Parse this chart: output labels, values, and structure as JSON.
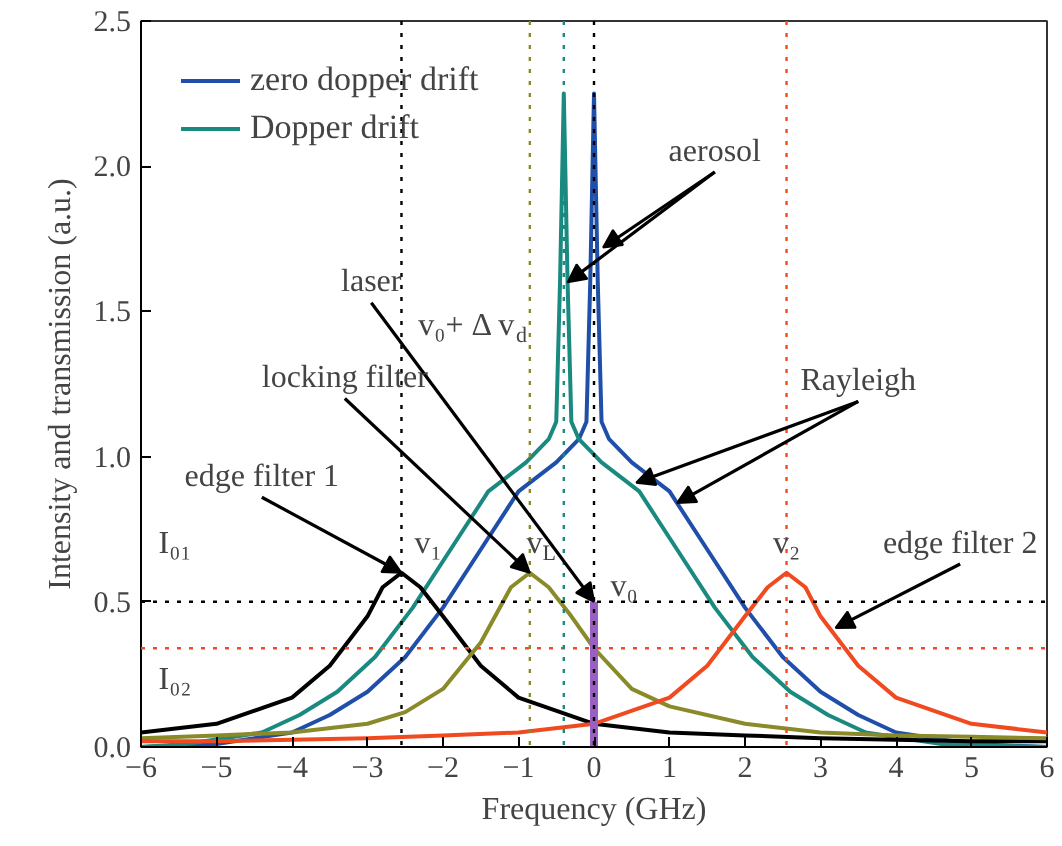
{
  "chart_data": {
    "type": "line",
    "xlabel": "Frequency (GHz)",
    "ylabel": "Intensity and transmission (a.u.)",
    "xlim": [
      -6,
      6
    ],
    "xticks": [
      -6,
      -5,
      -4,
      -3,
      -2,
      -1,
      0,
      1,
      2,
      3,
      4,
      5,
      6
    ],
    "ylim": [
      0,
      2.5
    ],
    "yticks": [
      {
        "value": 0,
        "label": "0.0"
      },
      {
        "value": 0.5,
        "label": "0.5"
      },
      {
        "value": 1,
        "label": "1.0"
      },
      {
        "value": 1.5,
        "label": "1.5"
      },
      {
        "value": 2,
        "label": "2.0"
      },
      {
        "value": 2.5,
        "label": "2.5"
      }
    ],
    "grid": false,
    "legend": "top left",
    "line_style": "solid",
    "marker": "none",
    "series": [
      {
        "name": "zero dopper drift",
        "color": "#1f4fa8",
        "x": [
          -6,
          -5,
          -4,
          -3.5,
          -3,
          -2.5,
          -2,
          -1.5,
          -1,
          -0.5,
          -0.2,
          -0.1,
          -0.05,
          0,
          0.05,
          0.1,
          0.2,
          0.5,
          1,
          1.5,
          2,
          2.5,
          3,
          3.5,
          4,
          5,
          6
        ],
        "values": [
          0,
          0.01,
          0.05,
          0.11,
          0.19,
          0.31,
          0.48,
          0.68,
          0.88,
          0.98,
          1.06,
          1.12,
          1.6,
          2.25,
          1.6,
          1.12,
          1.06,
          0.98,
          0.88,
          0.68,
          0.48,
          0.31,
          0.19,
          0.11,
          0.05,
          0.01,
          0
        ]
      },
      {
        "name": "Dopper drift",
        "color": "#1a8a80",
        "x": [
          -6,
          -5.4,
          -4.4,
          -3.9,
          -3.4,
          -2.9,
          -2.4,
          -1.9,
          -1.4,
          -0.9,
          -0.6,
          -0.5,
          -0.45,
          -0.4,
          -0.35,
          -0.3,
          -0.2,
          0.1,
          0.6,
          1.1,
          1.6,
          2.1,
          2.6,
          3.1,
          3.6,
          4.6,
          6
        ],
        "values": [
          0,
          0.01,
          0.05,
          0.11,
          0.19,
          0.31,
          0.48,
          0.68,
          0.88,
          0.98,
          1.06,
          1.12,
          1.6,
          2.25,
          1.6,
          1.12,
          1.06,
          0.98,
          0.88,
          0.68,
          0.48,
          0.31,
          0.19,
          0.11,
          0.05,
          0.01,
          0
        ]
      },
      {
        "color": "#000000",
        "x": [
          -6,
          -5,
          -4,
          -3.5,
          -3,
          -2.8,
          -2.55,
          -2.3,
          -2,
          -1.5,
          -1,
          0,
          1,
          2,
          3,
          4,
          5,
          6
        ],
        "values": [
          0.05,
          0.08,
          0.17,
          0.28,
          0.45,
          0.55,
          0.6,
          0.55,
          0.45,
          0.28,
          0.17,
          0.08,
          0.05,
          0.04,
          0.03,
          0.025,
          0.02,
          0.02
        ]
      },
      {
        "color": "#8a8a2a",
        "x": [
          -6,
          -5,
          -4,
          -3,
          -2.5,
          -2,
          -1.5,
          -1.1,
          -0.85,
          -0.6,
          -0.3,
          0,
          0.5,
          1,
          2,
          3,
          4,
          5,
          6
        ],
        "values": [
          0.03,
          0.04,
          0.05,
          0.08,
          0.12,
          0.2,
          0.36,
          0.55,
          0.6,
          0.55,
          0.45,
          0.34,
          0.2,
          0.14,
          0.08,
          0.05,
          0.04,
          0.035,
          0.03
        ]
      },
      {
        "color": "#f04a20",
        "x": [
          -6,
          -5,
          -4,
          -3,
          -2,
          -1,
          0,
          1,
          1.5,
          2,
          2.3,
          2.55,
          2.8,
          3,
          3.5,
          4,
          5,
          6
        ],
        "values": [
          0.02,
          0.02,
          0.025,
          0.03,
          0.04,
          0.05,
          0.08,
          0.17,
          0.28,
          0.45,
          0.55,
          0.6,
          0.55,
          0.45,
          0.28,
          0.17,
          0.08,
          0.05
        ]
      },
      {
        "color": "#9a5fc0",
        "x": [
          0,
          0
        ],
        "values": [
          0,
          0.5
        ]
      }
    ],
    "ref_lines": [
      {
        "axis": "y",
        "value": 0.5,
        "label": "I₀₁",
        "color": "#000000",
        "line_style": "dotted"
      },
      {
        "axis": "y",
        "value": 0.34,
        "label": "I₀₂",
        "color": "#f04a20",
        "line_style": "dotted"
      },
      {
        "axis": "x",
        "value": -2.55,
        "label": "v₁",
        "color": "#000000",
        "line_style": "dotted"
      },
      {
        "axis": "x",
        "value": -0.85,
        "label": "v$_{L}$",
        "color": "#8a8a2a",
        "line_style": "dotted"
      },
      {
        "axis": "x",
        "value": -0.4,
        "label": "v₀+ Δ v$_{d}$",
        "color": "#1a8a80",
        "line_style": "dotted"
      },
      {
        "axis": "x",
        "value": 0,
        "label": "v₀",
        "color": "#000000",
        "line_style": "dotted"
      },
      {
        "axis": "x",
        "value": 2.55,
        "label": "v₂",
        "color": "#f04a20",
        "line_style": "dotted"
      }
    ],
    "annotations": [
      {
        "text": "aerosol",
        "x": -0.35,
        "y": 1.6
      },
      {
        "text": "laser",
        "x": 0,
        "y": 0.5
      },
      {
        "text": "locking filter",
        "x": -0.85,
        "y": 0.6
      },
      {
        "text": "edge filter 1",
        "x": -2.55,
        "y": 0.6
      },
      {
        "text": "Rayleigh",
        "x": 1.1,
        "y": 0.84
      },
      {
        "text": "edge filter 2",
        "x": 3.2,
        "y": 0.41
      }
    ]
  }
}
